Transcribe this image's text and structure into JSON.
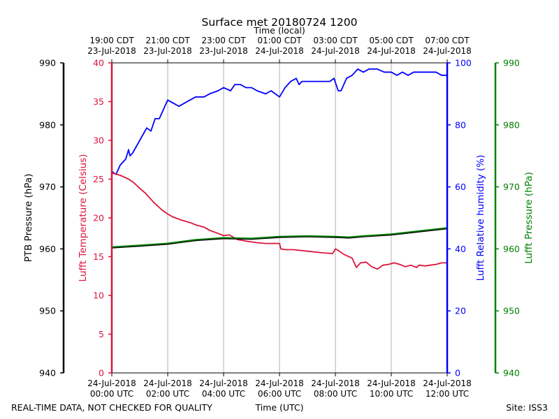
{
  "chart_data": {
    "type": "line",
    "title": "Surface met 20180724 1200",
    "xlabel_bottom": "Time (UTC)",
    "xlabel_top": "Time (local)",
    "footer_left": "REAL-TIME DATA, NOT CHECKED FOR QUALITY",
    "footer_right": "Site: ISS3",
    "x_range_hours": [
      0,
      12
    ],
    "grid": "vertical",
    "bottom_ticks": [
      {
        "h": 0,
        "line1": "24-Jul-2018",
        "line2": "00:00 UTC"
      },
      {
        "h": 2,
        "line1": "24-Jul-2018",
        "line2": "02:00 UTC"
      },
      {
        "h": 4,
        "line1": "24-Jul-2018",
        "line2": "04:00 UTC"
      },
      {
        "h": 6,
        "line1": "24-Jul-2018",
        "line2": "06:00 UTC"
      },
      {
        "h": 8,
        "line1": "24-Jul-2018",
        "line2": "08:00 UTC"
      },
      {
        "h": 10,
        "line1": "24-Jul-2018",
        "line2": "10:00 UTC"
      },
      {
        "h": 12,
        "line1": "24-Jul-2018",
        "line2": "12:00 UTC"
      }
    ],
    "top_ticks": [
      {
        "h": 0,
        "line1": "19:00 CDT",
        "line2": "23-Jul-2018"
      },
      {
        "h": 2,
        "line1": "21:00 CDT",
        "line2": "23-Jul-2018"
      },
      {
        "h": 4,
        "line1": "23:00 CDT",
        "line2": "23-Jul-2018"
      },
      {
        "h": 6,
        "line1": "01:00 CDT",
        "line2": "24-Jul-2018"
      },
      {
        "h": 8,
        "line1": "03:00 CDT",
        "line2": "24-Jul-2018"
      },
      {
        "h": 10,
        "line1": "05:00 CDT",
        "line2": "24-Jul-2018"
      },
      {
        "h": 12,
        "line1": "07:00 CDT",
        "line2": "24-Jul-2018"
      }
    ],
    "axes": {
      "ptb": {
        "label": "PTB Pressure (hPa)",
        "range": [
          940,
          990
        ],
        "ticks": [
          940,
          950,
          960,
          970,
          980,
          990
        ],
        "color": "#000000"
      },
      "temperature": {
        "label": "Lufft Temperature (Celsius)",
        "range": [
          0,
          40
        ],
        "ticks": [
          0,
          5,
          10,
          15,
          20,
          25,
          30,
          35,
          40
        ],
        "color": "#dc143c"
      },
      "humidity": {
        "label": "Lufft Relative humidity (%)",
        "range": [
          0,
          100
        ],
        "ticks": [
          0,
          20,
          40,
          60,
          80,
          100
        ],
        "color": "#0000ff"
      },
      "lufft_pressure": {
        "label": "Lufft Pressure (hPa)",
        "range": [
          940,
          990
        ],
        "ticks": [
          940,
          950,
          960,
          970,
          980,
          990
        ],
        "color": "#008000"
      }
    },
    "series": [
      {
        "name": "Lufft Relative humidity (%)",
        "axis": "humidity",
        "color": "#0000ff",
        "x": [
          0,
          0.15,
          0.3,
          0.5,
          0.6,
          0.65,
          0.75,
          1.0,
          1.25,
          1.4,
          1.55,
          1.7,
          1.85,
          2.0,
          2.2,
          2.4,
          2.6,
          3.0,
          3.3,
          3.5,
          3.8,
          4.0,
          4.25,
          4.4,
          4.6,
          4.8,
          5.0,
          5.2,
          5.5,
          5.7,
          5.85,
          6.0,
          6.2,
          6.4,
          6.6,
          6.7,
          6.8,
          7.0,
          7.2,
          7.4,
          7.6,
          7.8,
          7.95,
          8.1,
          8.2,
          8.4,
          8.6,
          8.8,
          9.0,
          9.2,
          9.5,
          9.75,
          10.0,
          10.2,
          10.4,
          10.6,
          10.8,
          11.0,
          11.2,
          11.4,
          11.6,
          11.8,
          12.0
        ],
        "values": [
          65,
          64,
          67,
          69,
          72,
          70,
          71,
          75,
          79,
          78,
          82,
          82,
          85,
          88,
          87,
          86,
          87,
          89,
          89,
          90,
          91,
          92,
          91,
          93,
          93,
          92,
          92,
          91,
          90,
          91,
          90,
          89,
          92,
          94,
          95,
          93,
          94,
          94,
          94,
          94,
          94,
          94,
          95,
          91,
          91,
          95,
          96,
          98,
          97,
          98,
          98,
          97,
          97,
          96,
          97,
          96,
          97,
          97,
          97,
          97,
          97,
          96,
          96
        ]
      },
      {
        "name": "Lufft Temperature (Celsius)",
        "axis": "temperature",
        "color": "#dc143c",
        "x": [
          0,
          0.3,
          0.6,
          0.8,
          1.0,
          1.2,
          1.5,
          1.8,
          2.0,
          2.2,
          2.5,
          2.8,
          3.0,
          3.3,
          3.5,
          3.8,
          4.0,
          4.2,
          4.5,
          4.8,
          5.0,
          5.2,
          5.5,
          6.0,
          6.05,
          6.2,
          6.5,
          7.0,
          7.5,
          7.9,
          8.0,
          8.1,
          8.3,
          8.6,
          8.75,
          8.9,
          9.1,
          9.3,
          9.5,
          9.7,
          9.9,
          10.1,
          10.3,
          10.5,
          10.7,
          10.9,
          11.0,
          11.2,
          11.4,
          11.6,
          11.8,
          12.0
        ],
        "values": [
          25.8,
          25.5,
          25.0,
          24.5,
          23.8,
          23.2,
          22.0,
          21.0,
          20.5,
          20.1,
          19.7,
          19.4,
          19.1,
          18.8,
          18.4,
          18.0,
          17.7,
          17.8,
          17.2,
          17.0,
          16.9,
          16.8,
          16.7,
          16.7,
          16.0,
          15.9,
          15.9,
          15.7,
          15.5,
          15.4,
          16.0,
          15.8,
          15.3,
          14.8,
          13.6,
          14.2,
          14.3,
          13.7,
          13.4,
          13.9,
          14.0,
          14.2,
          14.0,
          13.7,
          13.9,
          13.6,
          13.9,
          13.8,
          13.9,
          14.0,
          14.2,
          14.2
        ]
      },
      {
        "name": "PTB Pressure (hPa)",
        "axis": "ptb",
        "color": "#000000",
        "x": [
          0,
          1,
          2,
          3,
          4,
          5,
          6,
          7,
          8,
          8.5,
          9,
          10,
          11,
          12
        ],
        "values": [
          960.2,
          960.5,
          960.8,
          961.4,
          961.7,
          961.6,
          961.9,
          962.0,
          961.9,
          961.8,
          962.0,
          962.3,
          962.8,
          963.3
        ]
      },
      {
        "name": "Lufft Pressure (hPa)",
        "axis": "lufft_pressure",
        "color": "#008000",
        "x": [
          0,
          1,
          2,
          3,
          4,
          5,
          6,
          7,
          8,
          8.5,
          9,
          10,
          11,
          12
        ],
        "values": [
          960.3,
          960.6,
          960.9,
          961.5,
          961.8,
          961.7,
          962.0,
          962.1,
          962.0,
          961.9,
          962.1,
          962.4,
          962.9,
          963.4
        ]
      }
    ]
  }
}
